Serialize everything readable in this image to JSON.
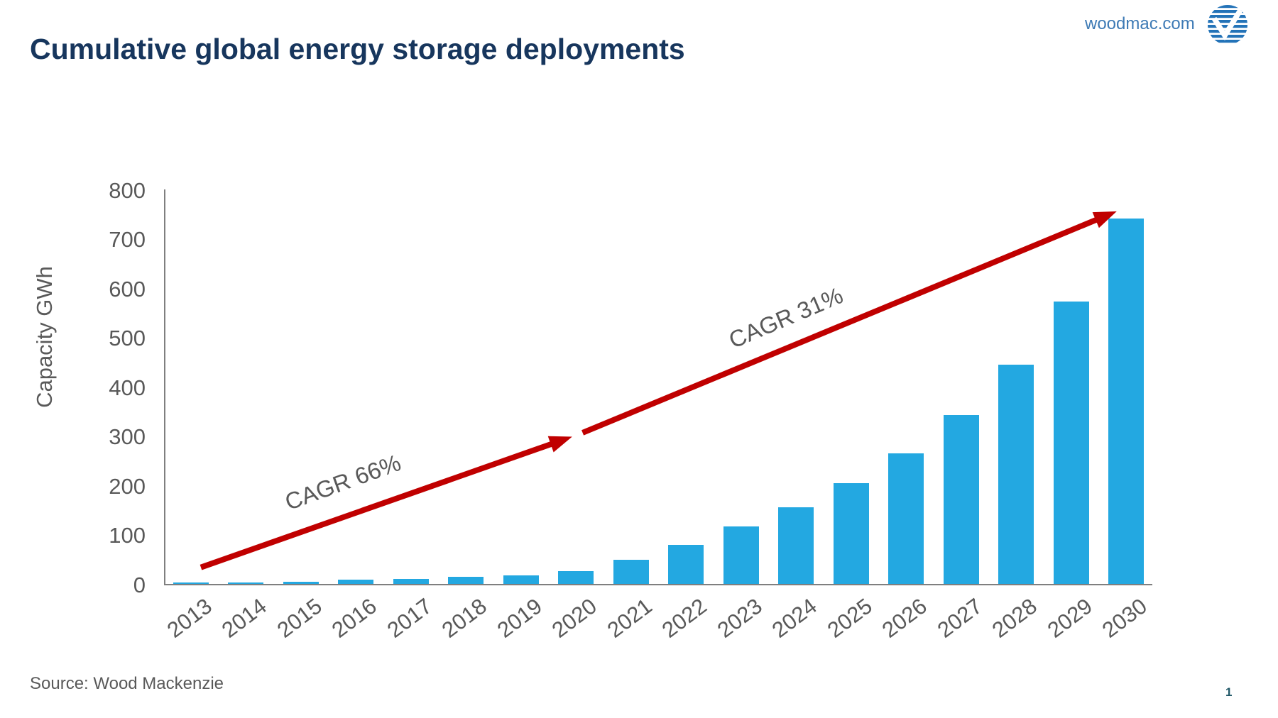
{
  "header": {
    "title": "Cumulative global energy storage deployments",
    "website": "woodmac.com",
    "logo": "wood-mackenzie-logo"
  },
  "footer": {
    "source": "Source: Wood Mackenzie",
    "page_number": "1"
  },
  "colors": {
    "title_navy": "#17365D",
    "brand_blue": "#3D7AB5",
    "bar_blue": "#23A8E1",
    "arrow_red": "#C00000",
    "text_gray": "#595959",
    "axis_gray": "#7F7F7F",
    "page_number": "#215868"
  },
  "chart_data": {
    "type": "bar",
    "title": "Cumulative global energy storage deployments",
    "xlabel": "",
    "ylabel": "Capacity GWh",
    "ylim": [
      0,
      800
    ],
    "y_ticks": [
      0,
      100,
      200,
      300,
      400,
      500,
      600,
      700,
      800
    ],
    "grid": false,
    "legend": false,
    "categories": [
      "2013",
      "2014",
      "2015",
      "2016",
      "2017",
      "2018",
      "2019",
      "2020",
      "2021",
      "2022",
      "2023",
      "2024",
      "2025",
      "2026",
      "2027",
      "2028",
      "2029",
      "2030"
    ],
    "values": [
      2,
      3,
      5,
      8,
      10,
      14,
      17,
      26,
      49,
      79,
      117,
      156,
      205,
      265,
      343,
      445,
      572,
      741
    ],
    "series_unit": "GWh",
    "annotations": [
      {
        "text": "CAGR 66%",
        "x_year": 2015.76,
        "y_gwh": 207,
        "angle_deg": -20
      },
      {
        "text": "CAGR 31%",
        "x_year": 2023.82,
        "y_gwh": 541,
        "angle_deg": -23
      }
    ],
    "arrows": [
      {
        "name": "cagr-66-arrow",
        "from_year": 2013.18,
        "from_gwh": 35,
        "to_year": 2019.93,
        "to_gwh": 300
      },
      {
        "name": "cagr-31-arrow",
        "from_year": 2020.12,
        "from_gwh": 308,
        "to_year": 2029.83,
        "to_gwh": 757
      }
    ]
  }
}
